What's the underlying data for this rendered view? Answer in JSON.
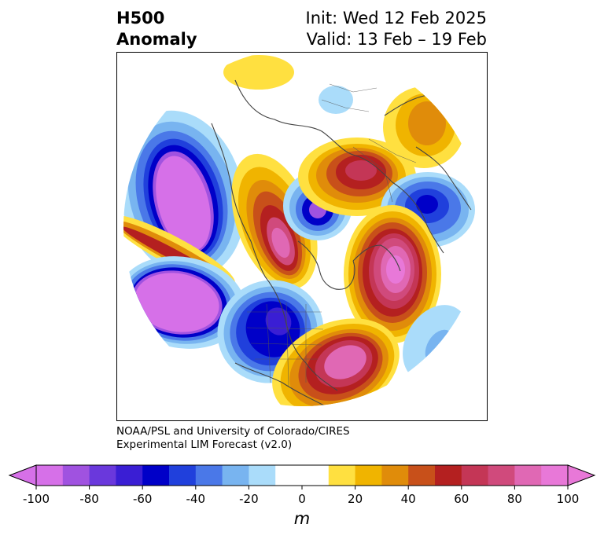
{
  "title": {
    "left_line1": "H500",
    "left_line2": "Anomaly",
    "right_line1": "Init: Wed 12 Feb 2025",
    "right_line2": "Valid: 13 Feb – 19 Feb"
  },
  "credit": {
    "line1": "NOAA/PSL and University of Colorado/CIRES",
    "line2": "Experimental LIM Forecast (v2.0)"
  },
  "colorbar": {
    "unit": "m",
    "ticks": [
      "-100",
      "-80",
      "-60",
      "-40",
      "-20",
      "0",
      "20",
      "40",
      "60",
      "80",
      "100"
    ],
    "colors": [
      "#d670e8",
      "#a052e0",
      "#6a38dc",
      "#3a1ed4",
      "#0000c8",
      "#2040dc",
      "#4a78e8",
      "#78b4f0",
      "#aadcfa",
      "#ffffff",
      "#ffffff",
      "#ffe040",
      "#f0b400",
      "#e08c0a",
      "#c8501a",
      "#b42020",
      "#c43656",
      "#d04a7c",
      "#e068b4",
      "#e878d8"
    ],
    "min_arrow_color": "#d670e8",
    "max_arrow_color": "#e878d8"
  },
  "anomaly_centers": [
    {
      "region": "NE Pacific / Gulf of Alaska",
      "sign": "negative",
      "approx_m": -110
    },
    {
      "region": "North Pacific south of Aleutians",
      "sign": "negative",
      "approx_m": -110
    },
    {
      "region": "Western Russia",
      "sign": "negative",
      "approx_m": -70
    },
    {
      "region": "Arctic Ocean",
      "sign": "negative",
      "approx_m": -60
    },
    {
      "region": "Central US",
      "sign": "negative",
      "approx_m": -70
    },
    {
      "region": "North Atlantic",
      "sign": "positive",
      "approx_m": 110
    },
    {
      "region": "Eastern Siberia",
      "sign": "positive",
      "approx_m": 90
    },
    {
      "region": "Scandinavia / Barents",
      "sign": "positive",
      "approx_m": 70
    },
    {
      "region": "Southeast US / western Atlantic",
      "sign": "positive",
      "approx_m": 90
    },
    {
      "region": "Eastern Europe",
      "sign": "positive",
      "approx_m": 30
    }
  ]
}
